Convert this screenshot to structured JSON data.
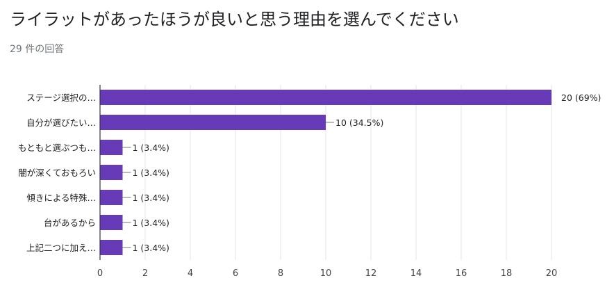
{
  "header": {
    "title": "ライラットがあったほうが良いと思う理由を選んでください",
    "response_count": "29 件の回答"
  },
  "chart_data": {
    "type": "bar",
    "orientation": "horizontal",
    "categories": [
      "ステージ選択の…",
      "自分が選びたい…",
      "もともと選ぶつも…",
      "闇が深くておもろい",
      "傾きによる特殊…",
      "台があるから",
      "上記二つに加え…"
    ],
    "values": [
      20,
      10,
      1,
      1,
      1,
      1,
      1
    ],
    "data_labels": [
      "20 (69%)",
      "10 (34.5%)",
      "1 (3.4%)",
      "1 (3.4%)",
      "1 (3.4%)",
      "1 (3.4%)",
      "1 (3.4%)"
    ],
    "xlim": [
      0,
      20
    ],
    "xticks": [
      0,
      2,
      4,
      6,
      8,
      10,
      12,
      14,
      16,
      18,
      20
    ],
    "grid": true,
    "bar_color": "#673ab7"
  }
}
